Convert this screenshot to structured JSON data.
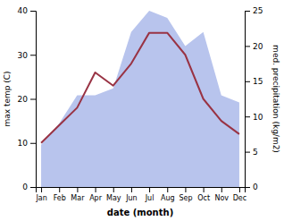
{
  "chart_data": {
    "type": "line",
    "categories": [
      "Jan",
      "Feb",
      "Mar",
      "Apr",
      "May",
      "Jun",
      "Jul",
      "Aug",
      "Sep",
      "Oct",
      "Nov",
      "Dec"
    ],
    "xlabel": "date (month)",
    "ylabel": "max temp (C)",
    "y2label": "med. precipitation (kg/m2)",
    "series": [
      {
        "type": "area",
        "axis": "y2",
        "color": "#b8c4ed",
        "values": [
          6.0,
          9.0,
          13.0,
          13.0,
          14.0,
          22.0,
          25.0,
          24.0,
          20.0,
          22.0,
          13.0,
          12.0
        ]
      },
      {
        "type": "line",
        "color": "#993344",
        "values": [
          10.0,
          14.0,
          18.0,
          26.0,
          23.0,
          28.0,
          35.0,
          35.0,
          30.0,
          20.0,
          15.0,
          12.0
        ]
      }
    ],
    "ylim": [
      0,
      40
    ],
    "yticks": [
      0,
      10,
      20,
      30,
      40
    ],
    "y2lim": [
      0,
      25
    ],
    "y2ticks": [
      0,
      5,
      10,
      15,
      20,
      25
    ]
  }
}
